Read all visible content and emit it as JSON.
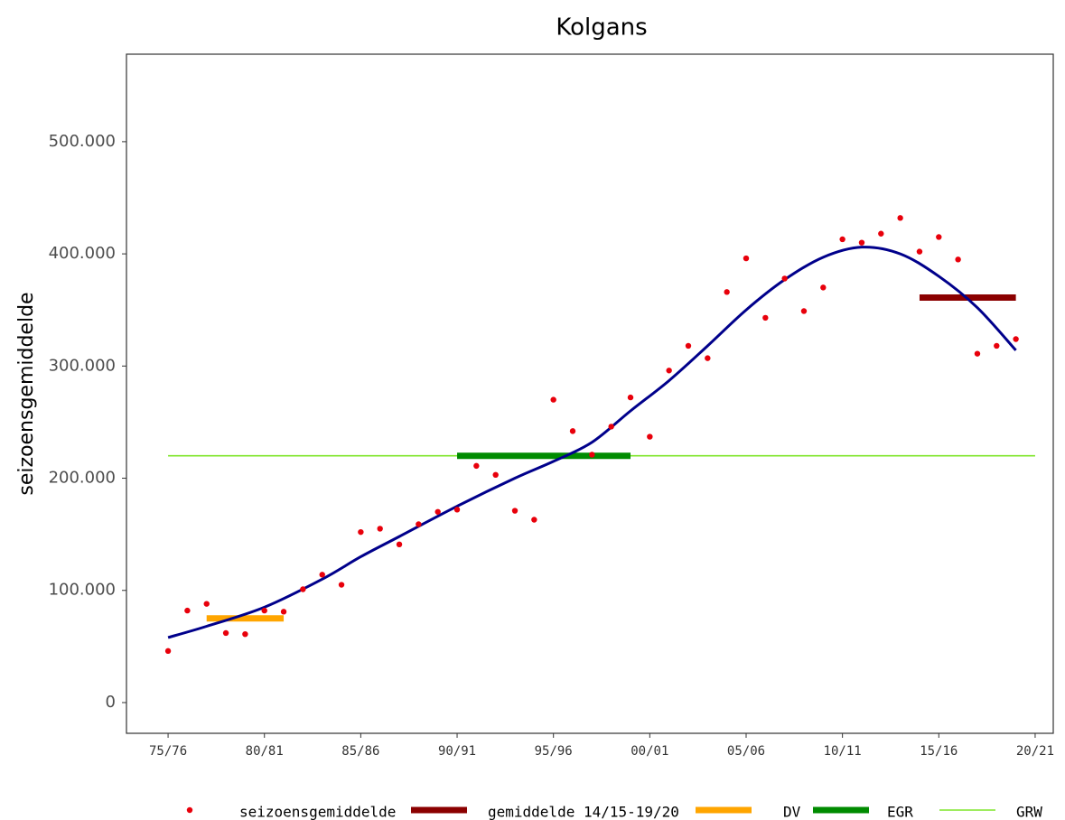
{
  "chart_data": {
    "type": "scatter",
    "title": "Kolgans",
    "y_label": "seizoensgemiddelde",
    "xlim": [
      1972.84,
      2020.94
    ],
    "ylim": [
      -27400,
      578000
    ],
    "xticks": [
      {
        "value": 1975,
        "label": "75/76"
      },
      {
        "value": 1980,
        "label": "80/81"
      },
      {
        "value": 1985,
        "label": "85/86"
      },
      {
        "value": 1990,
        "label": "90/91"
      },
      {
        "value": 1995,
        "label": "95/96"
      },
      {
        "value": 2000,
        "label": "00/01"
      },
      {
        "value": 2005,
        "label": "05/06"
      },
      {
        "value": 2010,
        "label": "10/11"
      },
      {
        "value": 2015,
        "label": "15/16"
      },
      {
        "value": 2020,
        "label": "20/21"
      }
    ],
    "yticks": [
      0,
      {
        "value": 100000,
        "label": "100.000"
      },
      {
        "value": 200000,
        "label": "200.000"
      },
      {
        "value": 300000,
        "label": "300.000"
      },
      {
        "value": 400000,
        "label": "400.000"
      },
      {
        "value": 500000,
        "label": "500.000"
      }
    ],
    "series": [
      {
        "name": "seizoensgemiddelde",
        "style": "points",
        "color": "#e8000b",
        "x": [
          1975,
          1976,
          1977,
          1978,
          1979,
          1980,
          1981,
          1982,
          1983,
          1984,
          1985,
          1986,
          1987,
          1988,
          1989,
          1990,
          1991,
          1992,
          1993,
          1994,
          1995,
          1996,
          1997,
          1998,
          1999,
          2000,
          2001,
          2002,
          2003,
          2004,
          2005,
          2006,
          2007,
          2008,
          2009,
          2010,
          2011,
          2012,
          2013,
          2014,
          2015,
          2016,
          2017,
          2018,
          2019
        ],
        "values": [
          46000,
          82000,
          88000,
          62000,
          61000,
          82000,
          81000,
          101000,
          114000,
          105000,
          152000,
          155000,
          141000,
          159000,
          170000,
          172000,
          211000,
          203000,
          171000,
          163000,
          270000,
          242000,
          221000,
          246000,
          272000,
          237000,
          296000,
          318000,
          307000,
          366000,
          396000,
          343000,
          378000,
          349000,
          370000,
          413000,
          410000,
          418000,
          432000,
          402000,
          415000,
          395000,
          311000,
          318000,
          324000
        ]
      },
      {
        "style": "smooth",
        "color": "#00008b",
        "x": [
          1975,
          1977,
          1980,
          1983,
          1985,
          1987,
          1990,
          1993,
          1995,
          1997,
          1999,
          2001,
          2003,
          2005,
          2007,
          2009,
          2011,
          2013,
          2015,
          2017,
          2019
        ],
        "values": [
          58000,
          68000,
          85000,
          110000,
          130000,
          148000,
          175000,
          200000,
          215000,
          232000,
          260000,
          287000,
          318000,
          350000,
          377000,
          397000,
          406000,
          400000,
          380000,
          352000,
          314000
        ]
      },
      {
        "name": "gemiddelde 14/15-19/20",
        "style": "segment",
        "color": "#8b0000",
        "x": [
          2014,
          2019
        ],
        "values": [
          361000,
          361000
        ]
      },
      {
        "name": "DV",
        "style": "segment",
        "color": "#ffa500",
        "x": [
          1977,
          1981
        ],
        "values": [
          75000,
          75000
        ]
      },
      {
        "name": "EGR",
        "style": "segment",
        "color": "#008b00",
        "x": [
          1990,
          1999
        ],
        "values": [
          220000,
          220000
        ]
      },
      {
        "name": "GRW",
        "style": "thin",
        "color": "#7fe52a",
        "x": [
          1975,
          2020
        ],
        "values": [
          220000,
          220000
        ]
      }
    ]
  }
}
